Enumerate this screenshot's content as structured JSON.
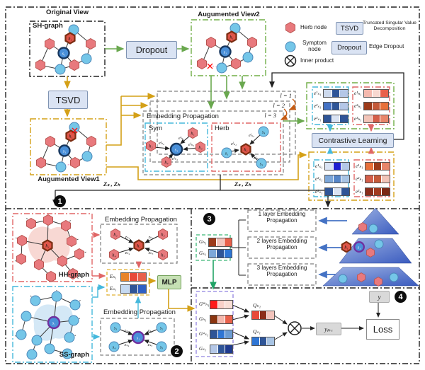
{
  "legend": {
    "herb": "Herb node",
    "symptom": "Symptom node",
    "tsvd_chip": "TSVD",
    "tsvd_desc": "Truncated Singular Value Decomposition",
    "dropout_chip": "Dropout",
    "dropout_desc": "Edge Dropout",
    "inner": "Inner product"
  },
  "s1": {
    "badge": "1",
    "original_title": "Original View",
    "sh_label": "SH-graph",
    "dropout": "Dropout",
    "tsvd": "TSVD",
    "view2_title": "Augumented View2",
    "view1_title": "Augumented View1",
    "l1": "l = 1",
    "l2": "l = 2",
    "l3": "l = 3",
    "ep_title": "Embedding Propagation",
    "sym_title": "Sym",
    "herb_title": "Herb",
    "node_h1": "h₁",
    "node_s1": "s₁",
    "sym_nodes": {
      "h1": "h₁",
      "h2": "h₂",
      "h3": "h₃",
      "h4": "h₄",
      "center": "s₁",
      "e1": "eˡₕ₁",
      "e2": "eˡₕ₂",
      "e3": "eˡₕ₃",
      "e4": "eˡₕ₄"
    },
    "herb_nodes": {
      "s4": "s₄",
      "s1": "s₁",
      "s3": "s₃",
      "center": "h₁",
      "e1": "eˡₛ₄",
      "e2": "eˡₛ₁",
      "e3": "eˡₛ₃"
    },
    "z_left": "Zₛ , Zₕ",
    "z_right": "Zₛ , Zₕ",
    "contrastive": "Contrastive Learning",
    "v2_sym_rows": [
      {
        "label": "e¹ₛ₁",
        "cells": [
          "#cdd9ec",
          "#2f5597",
          "#b4c7e7"
        ]
      },
      {
        "label": "e²ₛ₁",
        "cells": [
          "#4472c4",
          "#2f5597",
          "#b4c7e7"
        ]
      },
      {
        "label": "e³ₛ₁",
        "cells": [
          "#2f5597",
          "#dae3f3",
          "#2f5597"
        ]
      }
    ],
    "v2_herb_rows": [
      {
        "label": "e¹ₕ₁",
        "cells": [
          "#f4b8ad",
          "#f8d8d0",
          "#e8604a"
        ]
      },
      {
        "label": "e²ₕ₁",
        "cells": [
          "#9c3a1a",
          "#c55a3a",
          "#e8703a"
        ]
      },
      {
        "label": "e³ₕ₁",
        "cells": [
          "#f2c4b8",
          "#d45f4a",
          "#e8856a"
        ]
      }
    ],
    "v1_sym_rows": [
      {
        "label": "e¹ₛ₁",
        "cells": [
          "#dae3f3",
          "#1f1fd0",
          "#b4c7e7"
        ]
      },
      {
        "label": "e²ₛ₁",
        "cells": [
          "#7da7d9",
          "#5585c8",
          "#a8c4e4"
        ]
      },
      {
        "label": "e³ₛ₁",
        "cells": [
          "#2f5597",
          "#dae3f3",
          "#2f5597"
        ]
      }
    ],
    "v1_herb_rows": [
      {
        "label": "e¹ₕ₁",
        "cells": [
          "#e8703a",
          "#9c3a1a",
          "#e8856a"
        ]
      },
      {
        "label": "e²ₕ₁",
        "cells": [
          "#d45f4a",
          "#c55a3a",
          "#f2c4b8"
        ]
      },
      {
        "label": "e³ₕ₁",
        "cells": [
          "#8b2e1a",
          "#a33b1f",
          "#7a2815"
        ]
      }
    ]
  },
  "s2": {
    "badge": "2",
    "hh_label": "HH-graph",
    "ss_label": "SS-graph",
    "ep1_title": "Embedding Propagation",
    "ep2_title": "Embedding Propagation",
    "center_h": "h₁",
    "center_s": "s₁",
    "hh": {
      "center": "h₁",
      "n1": "h₂",
      "n2": "h₃",
      "n3": "h₄",
      "n4": "h₅",
      "z1": "zₕ₂",
      "z2": "zₕ₃",
      "z3": "zₕ₄",
      "z4": "zₕ₅"
    },
    "ss": {
      "center": "s₁",
      "n1": "s₃",
      "n2": "s₂",
      "n3": "s₄",
      "n4": "s₅",
      "z1": "zₛ₃",
      "z2": "zₛ₂",
      "z3": "zₛ₄",
      "z4": "zₛ₅"
    },
    "e_rows": [
      {
        "label": "Eₕ₁",
        "cells": [
          "#e8842a",
          "#e84a3a",
          "#e8604a"
        ]
      },
      {
        "label": "Eₛ₁",
        "cells": [
          "#c5d9f1",
          "#2f5597",
          "#2e5fc4"
        ]
      }
    ],
    "mlp": "MLP"
  },
  "s3": {
    "badge": "3",
    "g_rows": [
      {
        "label": "Gₕ₁",
        "cells": [
          "#9c3a1a",
          "#f2c4bc",
          "#e8604a"
        ]
      },
      {
        "label": "Gₛ₁",
        "cells": [
          "#7da7d9",
          "#2f5597",
          "#2e75d4"
        ]
      }
    ],
    "layer1": "1 layer Embedding Propagation",
    "layer2": "2 layers Embedding Propagation",
    "layer3": "3 layers Embedding Propagation",
    "pyr_h": "h₁",
    "pyr_s": "s₁"
  },
  "s4": {
    "badge": "4",
    "g_rows": [
      {
        "label": "Gʰʰₕ₁",
        "cells": [
          "#ff1a1a",
          "#f8d0c8",
          "#f8ded6"
        ]
      },
      {
        "label": "Gₕ₁",
        "cells": [
          "#8b3510",
          "#f4b8ad",
          "#e8604a"
        ]
      },
      {
        "label": "Gˢˢₛ₁",
        "cells": [
          "#2f5597",
          "#2e75d4",
          "#6b9bd2"
        ]
      },
      {
        "label": "Gₛ₁",
        "cells": [
          "#b4c7e7",
          "#2f5597",
          "#1f3b8f"
        ]
      }
    ],
    "q1_label": "Qₕ₁",
    "q2_label": "Qₛ₁",
    "q1_rows": [
      {
        "label": "",
        "cells": [
          "#e84a3a",
          "#8b2e1a",
          "#f2c4bc"
        ]
      }
    ],
    "q2_rows": [
      {
        "label": "",
        "cells": [
          "#2e75d4",
          "#2f5597",
          "#a8c4e4"
        ]
      }
    ],
    "y": "y",
    "y_pre": "yₚᵣₑ",
    "loss": "Loss"
  },
  "colors": {
    "herb_node": "#e8797d",
    "herb_special": "#df5549",
    "symptom_node": "#74c6e8",
    "ring_navy": "#17375e",
    "ring_purple": "#7030a0",
    "ring_maroon": "#7b2d12",
    "green_accent": "#70ad47",
    "gold_accent": "#d4a017",
    "red_accent": "#e06666",
    "cyan_accent": "#45b8dc",
    "purple_accent": "#9183e0",
    "blue_arrow": "#4472c4",
    "chip_fill": "#dae3f3",
    "mlp_fill": "#c6e0b4",
    "gray_fill": "#d9d9d9",
    "orange_accent": "#c55a11",
    "green_bright": "#21a366"
  }
}
